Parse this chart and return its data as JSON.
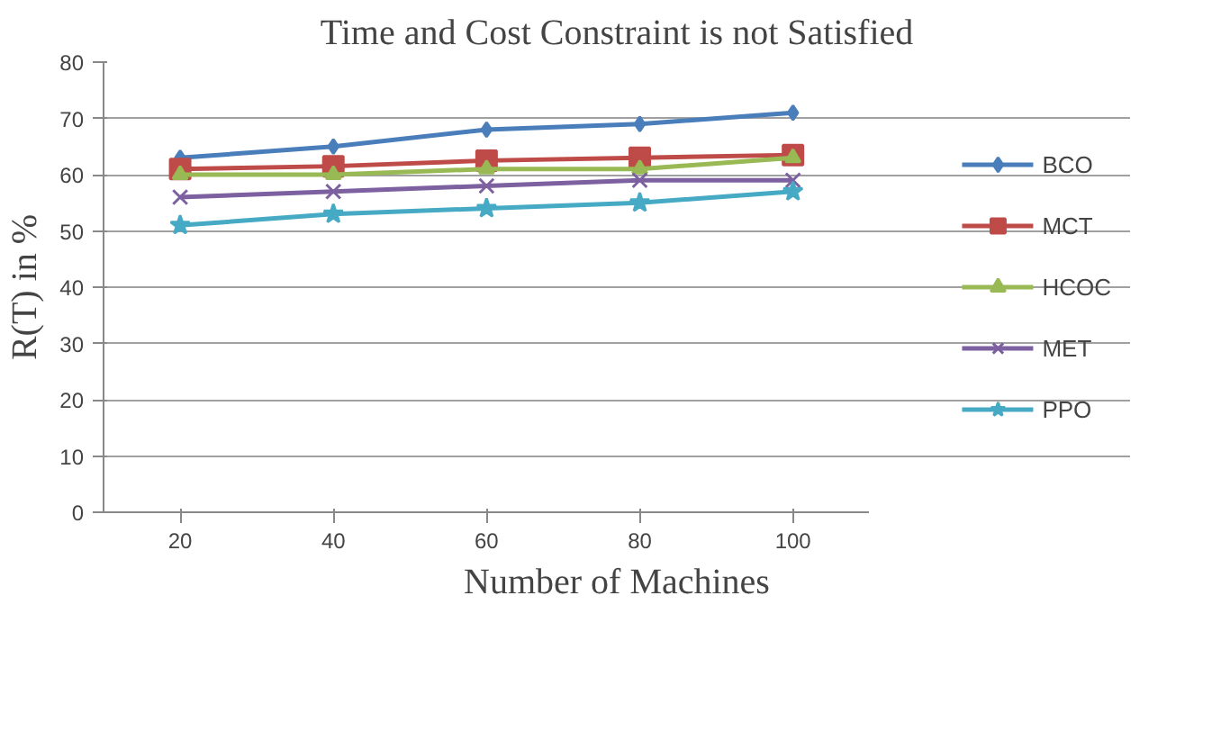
{
  "chart_data": {
    "type": "line",
    "title": "Time and Cost Constraint is not Satisfied",
    "xlabel": "Number of Machines",
    "ylabel": "R(T) in %",
    "categories": [
      "20",
      "40",
      "60",
      "80",
      "100"
    ],
    "ylim": [
      0,
      80
    ],
    "yticks": [
      0,
      10,
      20,
      30,
      40,
      50,
      60,
      70,
      80
    ],
    "grid": "y",
    "legend": "right",
    "line_style": "solid",
    "series": [
      {
        "name": "BCO",
        "color": "#4a7ebb",
        "marker": "diamond",
        "values": [
          63,
          65,
          68,
          69,
          71
        ]
      },
      {
        "name": "MCT",
        "color": "#be4b48",
        "marker": "square",
        "values": [
          61,
          61.5,
          62.5,
          63,
          63.5
        ]
      },
      {
        "name": "HCOC",
        "color": "#98b954",
        "marker": "triangle",
        "values": [
          60,
          60,
          61,
          61,
          63
        ]
      },
      {
        "name": "MET",
        "color": "#7d60a0",
        "marker": "cross",
        "values": [
          56,
          57,
          58,
          59,
          59
        ]
      },
      {
        "name": "PPO",
        "color": "#46aac5",
        "marker": "star",
        "values": [
          51,
          53,
          54,
          55,
          57
        ]
      }
    ]
  }
}
